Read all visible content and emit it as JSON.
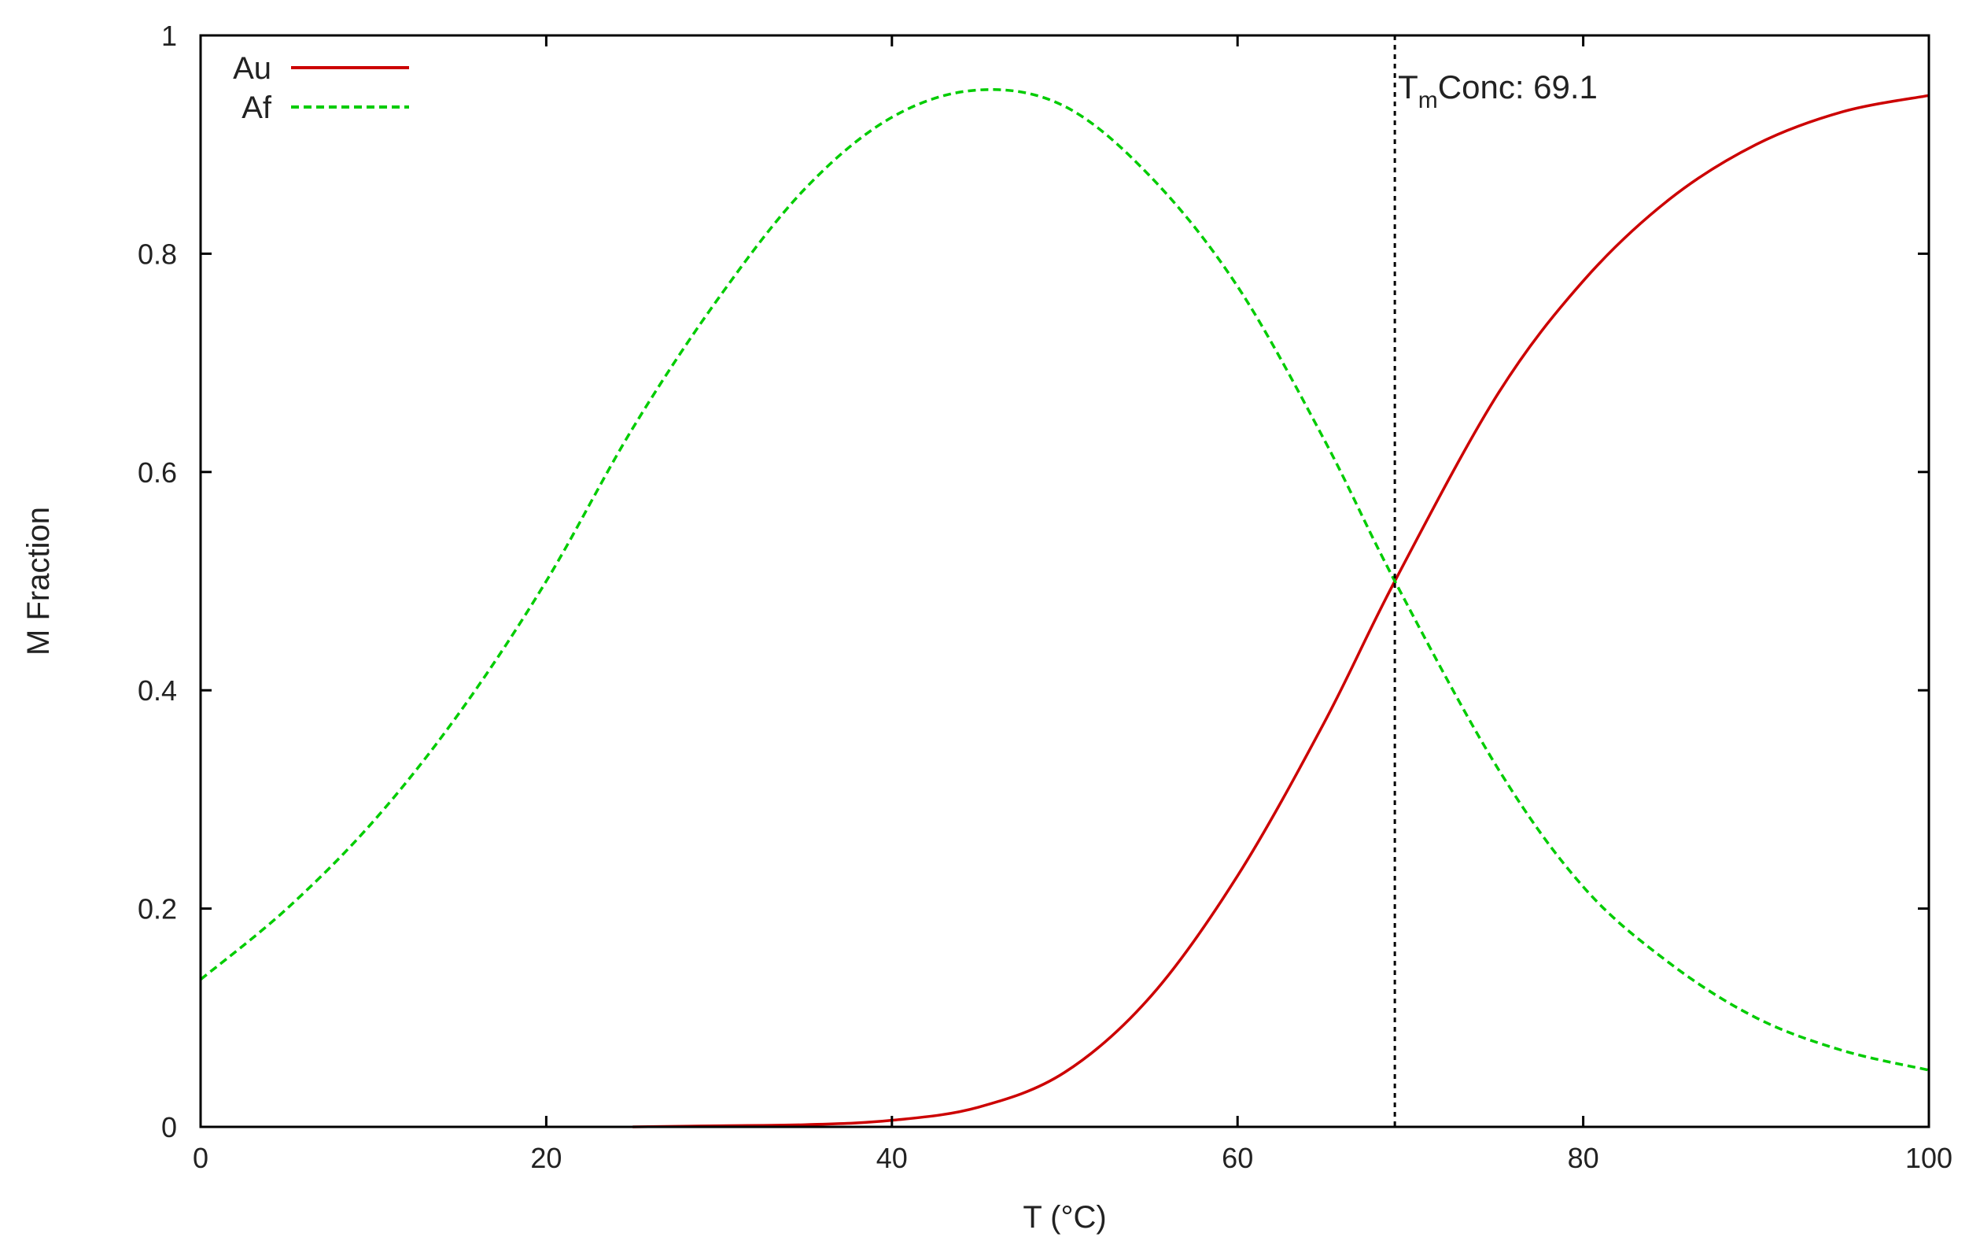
{
  "chart_data": {
    "type": "line",
    "title": "",
    "xlabel": "T (°C)",
    "ylabel": "M Fraction",
    "xlim": [
      0,
      100
    ],
    "ylim": [
      0,
      1
    ],
    "x_ticks": [
      0,
      20,
      40,
      60,
      80,
      100
    ],
    "y_ticks": [
      0,
      0.2,
      0.4,
      0.6,
      0.8,
      1
    ],
    "x_tick_labels": [
      "0",
      "20",
      "40",
      "60",
      "80",
      "100"
    ],
    "y_tick_labels": [
      "0",
      "0.2",
      "0.4",
      "0.6",
      "0.8",
      "1"
    ],
    "grid": false,
    "legend_position": "top-left",
    "series": [
      {
        "name": "Au",
        "color": "#cc0000",
        "dash": "solid",
        "x": [
          25,
          30,
          35,
          40,
          45,
          50,
          55,
          60,
          65,
          69.1,
          75,
          80,
          85,
          90,
          95,
          100
        ],
        "values": [
          0.0,
          0.001,
          0.002,
          0.006,
          0.018,
          0.05,
          0.12,
          0.23,
          0.37,
          0.5,
          0.67,
          0.775,
          0.85,
          0.9,
          0.93,
          0.945
        ]
      },
      {
        "name": "Af",
        "color": "#00cc00",
        "dash": "dashed",
        "x": [
          0,
          5,
          10,
          15,
          20,
          25,
          30,
          35,
          40,
          45,
          50,
          55,
          60,
          65,
          69.1,
          75,
          80,
          85,
          90,
          95,
          100
        ],
        "values": [
          0.135,
          0.2,
          0.28,
          0.38,
          0.5,
          0.64,
          0.76,
          0.86,
          0.925,
          0.95,
          0.935,
          0.87,
          0.77,
          0.63,
          0.5,
          0.33,
          0.22,
          0.15,
          0.1,
          0.07,
          0.052
        ]
      }
    ],
    "annotations": [
      {
        "type": "vline",
        "x": 69.1,
        "style": "dotted",
        "color": "#000000",
        "label_main": "T",
        "label_sub": "m",
        "label_rest": "Conc: 69.1"
      }
    ]
  }
}
